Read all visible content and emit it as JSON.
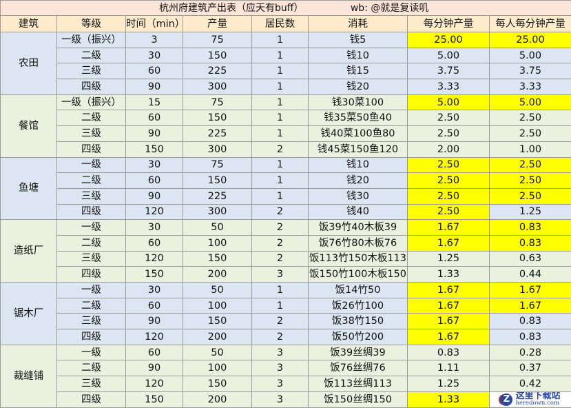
{
  "title": {
    "main": "杭州府建筑产出表（应天有buff）",
    "credit": "wb: @就是复读叽"
  },
  "headers": [
    "建筑",
    "等级",
    "时间（min）",
    "产量",
    "居民数",
    "消耗",
    "每分钟产量",
    "每人每分钟产量"
  ],
  "colors": {
    "highlight": "#ffff00",
    "group_blue": "#dce6f2",
    "group_green": "#ebf1df",
    "title_bg": "#fbe4d8",
    "header_bg": "#fdebcc"
  },
  "groups": [
    {
      "name": "农田",
      "color": "blue",
      "rows": [
        {
          "level": "一级（振兴）",
          "time": "3",
          "output": "75",
          "residents": "1",
          "cost": "钱5",
          "per_min": "25.00",
          "per_person": "25.00",
          "highlight": [
            true,
            true
          ]
        },
        {
          "level": "二级",
          "time": "30",
          "output": "150",
          "residents": "1",
          "cost": "钱10",
          "per_min": "5.00",
          "per_person": "5.00",
          "highlight": [
            false,
            false
          ]
        },
        {
          "level": "三级",
          "time": "60",
          "output": "225",
          "residents": "1",
          "cost": "钱15",
          "per_min": "3.75",
          "per_person": "3.75",
          "highlight": [
            false,
            false
          ]
        },
        {
          "level": "四级",
          "time": "90",
          "output": "300",
          "residents": "1",
          "cost": "钱20",
          "per_min": "3.33",
          "per_person": "3.33",
          "highlight": [
            false,
            false
          ]
        }
      ]
    },
    {
      "name": "餐馆",
      "color": "green",
      "rows": [
        {
          "level": "一级（振兴）",
          "time": "15",
          "output": "75",
          "residents": "1",
          "cost": "钱30菜100",
          "per_min": "5.00",
          "per_person": "5.00",
          "highlight": [
            true,
            true
          ]
        },
        {
          "level": "二级",
          "time": "60",
          "output": "150",
          "residents": "1",
          "cost": "钱35菜50鱼40",
          "per_min": "2.50",
          "per_person": "2.50",
          "highlight": [
            false,
            false
          ]
        },
        {
          "level": "三级",
          "time": "90",
          "output": "225",
          "residents": "1",
          "cost": "钱40菜100鱼80",
          "per_min": "2.50",
          "per_person": "2.50",
          "highlight": [
            false,
            false
          ]
        },
        {
          "level": "四级",
          "time": "150",
          "output": "300",
          "residents": "2",
          "cost": "钱45菜150鱼120",
          "per_min": "2.00",
          "per_person": "1.00",
          "highlight": [
            false,
            false
          ]
        }
      ]
    },
    {
      "name": "鱼塘",
      "color": "blue",
      "rows": [
        {
          "level": "一级",
          "time": "30",
          "output": "75",
          "residents": "1",
          "cost": "钱10",
          "per_min": "2.50",
          "per_person": "2.50",
          "highlight": [
            true,
            true
          ]
        },
        {
          "level": "二级",
          "time": "60",
          "output": "150",
          "residents": "1",
          "cost": "钱20",
          "per_min": "2.50",
          "per_person": "2.50",
          "highlight": [
            true,
            true
          ]
        },
        {
          "level": "三级",
          "time": "90",
          "output": "225",
          "residents": "1",
          "cost": "钱30",
          "per_min": "2.50",
          "per_person": "2.50",
          "highlight": [
            true,
            true
          ]
        },
        {
          "level": "四级",
          "time": "120",
          "output": "300",
          "residents": "2",
          "cost": "钱40",
          "per_min": "2.50",
          "per_person": "1.25",
          "highlight": [
            true,
            false
          ]
        }
      ]
    },
    {
      "name": "造纸厂",
      "color": "green",
      "rows": [
        {
          "level": "一级",
          "time": "30",
          "output": "50",
          "residents": "2",
          "cost": "饭39竹40木板39",
          "per_min": "1.67",
          "per_person": "0.83",
          "highlight": [
            true,
            true
          ]
        },
        {
          "level": "二级",
          "time": "60",
          "output": "100",
          "residents": "2",
          "cost": "饭76竹80木板76",
          "per_min": "1.67",
          "per_person": "0.83",
          "highlight": [
            true,
            true
          ]
        },
        {
          "level": "三级",
          "time": "120",
          "output": "150",
          "residents": "2",
          "cost": "饭113竹150木板113",
          "per_min": "1.25",
          "per_person": "0.63",
          "highlight": [
            false,
            false
          ]
        },
        {
          "level": "四级",
          "time": "150",
          "output": "200",
          "residents": "3",
          "cost": "饭150竹100木板150",
          "per_min": "1.33",
          "per_person": "0.44",
          "highlight": [
            false,
            false
          ]
        }
      ]
    },
    {
      "name": "锯木厂",
      "color": "blue",
      "rows": [
        {
          "level": "一级",
          "time": "30",
          "output": "50",
          "residents": "1",
          "cost": "饭14竹50",
          "per_min": "1.67",
          "per_person": "1.67",
          "highlight": [
            true,
            true
          ]
        },
        {
          "level": "二级",
          "time": "60",
          "output": "100",
          "residents": "1",
          "cost": "饭26竹100",
          "per_min": "1.67",
          "per_person": "1.67",
          "highlight": [
            true,
            true
          ]
        },
        {
          "level": "三级",
          "time": "90",
          "output": "150",
          "residents": "2",
          "cost": "饭38竹150",
          "per_min": "1.67",
          "per_person": "0.83",
          "highlight": [
            true,
            false
          ]
        },
        {
          "level": "四级",
          "time": "120",
          "output": "200",
          "residents": "2",
          "cost": "饭50竹200",
          "per_min": "1.67",
          "per_person": "0.83",
          "highlight": [
            true,
            false
          ]
        }
      ]
    },
    {
      "name": "裁缝铺",
      "color": "green",
      "rows": [
        {
          "level": "一级",
          "time": "60",
          "output": "50",
          "residents": "3",
          "cost": "饭39丝绸39",
          "per_min": "0.83",
          "per_person": "0.28",
          "highlight": [
            false,
            false
          ]
        },
        {
          "level": "二级",
          "time": "90",
          "output": "100",
          "residents": "3",
          "cost": "饭76丝绸76",
          "per_min": "1.11",
          "per_person": "0.37",
          "highlight": [
            false,
            false
          ]
        },
        {
          "level": "三级",
          "time": "120",
          "output": "150",
          "residents": "3",
          "cost": "饭113丝绸113",
          "per_min": "1.25",
          "per_person": "0.42",
          "highlight": [
            false,
            false
          ]
        },
        {
          "level": "四级",
          "time": "150",
          "output": "200",
          "residents": "3",
          "cost": "饭150丝绸150",
          "per_min": "1.33",
          "per_person": "",
          "highlight": [
            true,
            false
          ]
        }
      ]
    }
  ],
  "watermark": {
    "cn": "这里下载站",
    "en": "heredown.com",
    "logo": "Z"
  }
}
